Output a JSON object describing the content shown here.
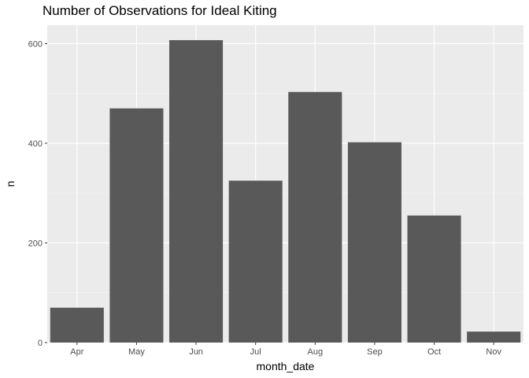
{
  "chart_data": {
    "type": "bar",
    "title": "Number of Observations for Ideal Kiting",
    "xlabel": "month_date",
    "ylabel": "n",
    "categories": [
      "Apr",
      "May",
      "Jun",
      "Jul",
      "Aug",
      "Sep",
      "Oct",
      "Nov"
    ],
    "values": [
      70,
      470,
      607,
      325,
      503,
      402,
      255,
      22
    ],
    "ylim": [
      0,
      637
    ],
    "yticks": [
      0,
      200,
      400,
      600
    ],
    "grid": true,
    "legend": "none"
  },
  "colors": {
    "panel_background": "#ebebeb",
    "grid_major": "#ffffff",
    "grid_minor": "#f5f5f5",
    "bar_fill": "#595959",
    "tick_text": "#4d4d4d",
    "tick_mark": "#333333"
  }
}
